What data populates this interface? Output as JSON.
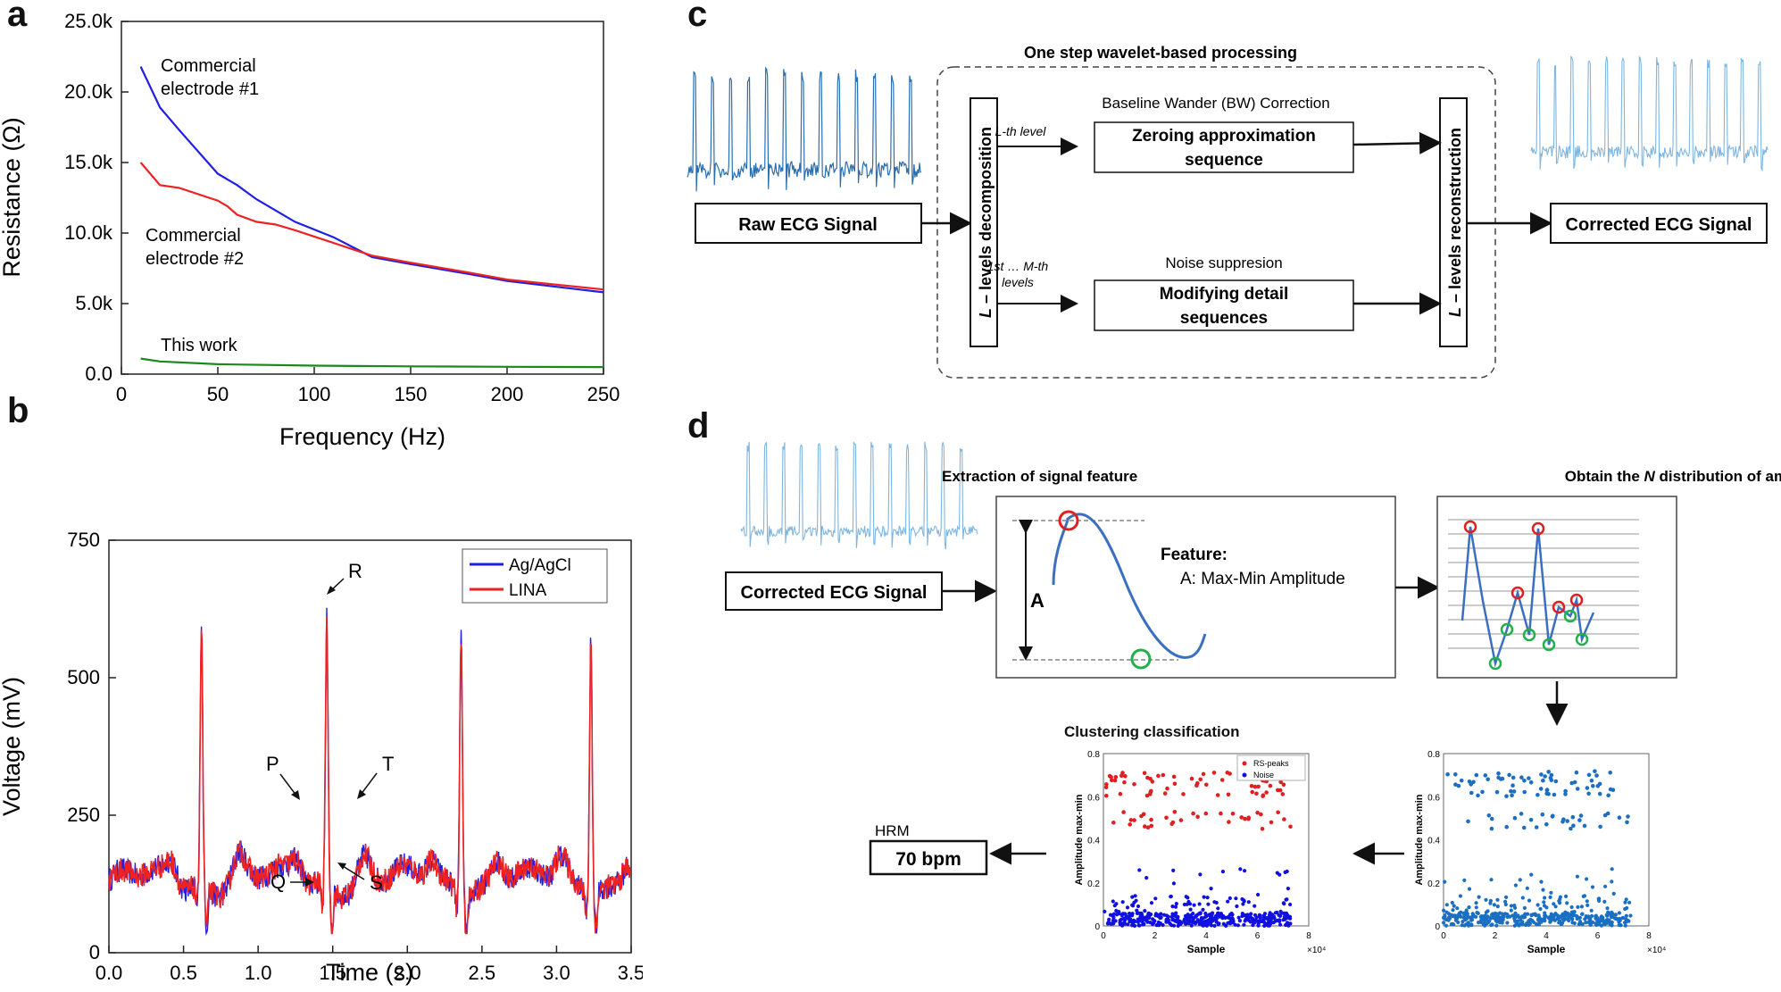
{
  "panels": {
    "a": "a",
    "b": "b",
    "c": "c",
    "d": "d"
  },
  "colors": {
    "blue": "#1f1fe6",
    "red": "#ee2222",
    "green": "#1a8a1a",
    "ecg_light": "#7fb6e0",
    "ecg_dark": "#2a6fb0",
    "scatter_blue": "#1a6fc2",
    "marker_red": "#e02020",
    "marker_green": "#22b04a"
  },
  "chart_data": [
    {
      "id": "panel-a",
      "type": "line",
      "xlabel": "Frequency (Hz)",
      "ylabel": "Resistance (Ω)",
      "xlim": [
        0,
        250
      ],
      "ylim": [
        0,
        25000
      ],
      "xticks": [
        "0",
        "50",
        "100",
        "150",
        "200",
        "250"
      ],
      "yticks": [
        "0.0",
        "5.0k",
        "10.0k",
        "15.0k",
        "20.0k",
        "25.0k"
      ],
      "series": [
        {
          "name": "Commercial electrode #1",
          "label_line1": "Commercial",
          "label_line2": "electrode #1",
          "color": "#1f1fe6",
          "x": [
            10,
            20,
            30,
            50,
            60,
            70,
            90,
            110,
            130,
            150,
            180,
            200,
            250
          ],
          "y": [
            21800,
            18900,
            17300,
            14200,
            13400,
            12400,
            10800,
            9700,
            8300,
            7800,
            7100,
            6600,
            5800
          ]
        },
        {
          "name": "Commercial electrode #2",
          "label_line1": "Commercial",
          "label_line2": "electrode #2",
          "color": "#ee2222",
          "x": [
            10,
            20,
            30,
            50,
            55,
            60,
            70,
            80,
            90,
            110,
            130,
            150,
            180,
            200,
            250
          ],
          "y": [
            15000,
            13400,
            13200,
            12300,
            11900,
            11300,
            10800,
            10600,
            10200,
            9300,
            8400,
            7900,
            7200,
            6700,
            6000
          ]
        },
        {
          "name": "This work",
          "label_line1": "This work",
          "color": "#1a8a1a",
          "x": [
            10,
            20,
            50,
            100,
            150,
            200,
            250
          ],
          "y": [
            1100,
            900,
            700,
            600,
            550,
            520,
            500
          ]
        }
      ]
    },
    {
      "id": "panel-b",
      "type": "line",
      "xlabel": "Time (s)",
      "ylabel": "Voltage (mV)",
      "xlim": [
        0,
        3.5
      ],
      "ylim": [
        0,
        750
      ],
      "xticks": [
        "0.0",
        "0.5",
        "1.0",
        "1.5",
        "2.0",
        "2.5",
        "3.0",
        "3.5"
      ],
      "yticks": [
        "0",
        "250",
        "500",
        "750"
      ],
      "legend": [
        "Ag/AgCl",
        "LINA"
      ],
      "legend_position": "top-right",
      "beats": [
        0.62,
        1.46,
        2.36,
        3.23
      ],
      "peak_values": [
        610,
        620,
        605,
        595
      ],
      "annotations": [
        "P",
        "Q",
        "R",
        "S",
        "T"
      ]
    }
  ],
  "panel_c": {
    "group_title": "One step wavelet-based processing",
    "raw_signal": "Raw ECG Signal",
    "decomposition_prefix": "L",
    "decomposition_rest": " – levels decomposition",
    "reconstruction_prefix": "L",
    "reconstruction_rest": " – levels reconstruction",
    "lth_level": "L-th level",
    "mth_levels_1": "1st … M-th",
    "mth_levels_2": "levels",
    "bw_title": "Baseline Wander (BW) Correction",
    "zeroing_1": "Zeroing approximation",
    "zeroing_2": "sequence",
    "noise_title": "Noise suppresion",
    "modifying_1": "Modifying detail",
    "modifying_2": "sequences",
    "corrected": "Corrected ECG Signal"
  },
  "panel_d": {
    "corrected": "Corrected ECG Signal",
    "extraction_title": "Extraction of signal feature",
    "feature_title": "Feature:",
    "feature_a": "A:   Max-Min Amplitude",
    "amp_letter": "A",
    "distribution_pre": "Obtain the ",
    "distribution_n": "N",
    "distribution_post": " distribution of amplitudes",
    "clustering_title": "Clustering classification",
    "hrm_label": "HRM",
    "hrm_value": "70 bpm",
    "legend_rs": "RS-peaks",
    "legend_noise": "Noise",
    "scatter_ylabel": "Amplitude max-min",
    "scatter_xlabel": "Sample",
    "scatter_exp": "×10⁴",
    "scatter_yticks": [
      "0",
      "0.2",
      "0.4",
      "0.6",
      "0.8"
    ],
    "scatter_xticks": [
      "0",
      "2",
      "4",
      "6",
      "8"
    ],
    "scatter_xlim": [
      0,
      8
    ],
    "scatter_ylim": [
      0,
      0.8
    ]
  }
}
